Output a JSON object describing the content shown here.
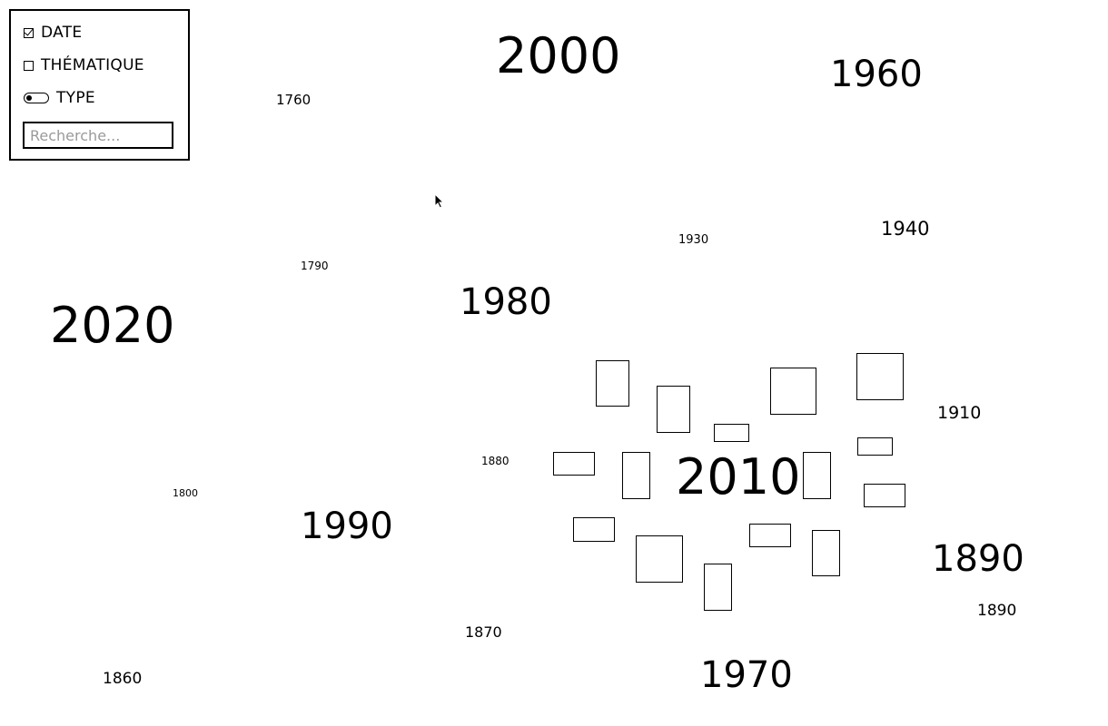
{
  "filters": {
    "date_label": "DATE",
    "date_checked": true,
    "thematique_label": "THÉMATIQUE",
    "thematique_checked": false,
    "type_label": "TYPE",
    "type_toggle_icon": "toggle-icon",
    "search_placeholder": "Recherche..."
  },
  "years": [
    "2000",
    "1960",
    "1760",
    "1930",
    "1940",
    "1790",
    "1980",
    "2020",
    "1910",
    "1880",
    "2010",
    "1800",
    "1990",
    "1890",
    "1890",
    "1870",
    "1860",
    "1970"
  ],
  "cursor_icon": "mouse-pointer-icon"
}
